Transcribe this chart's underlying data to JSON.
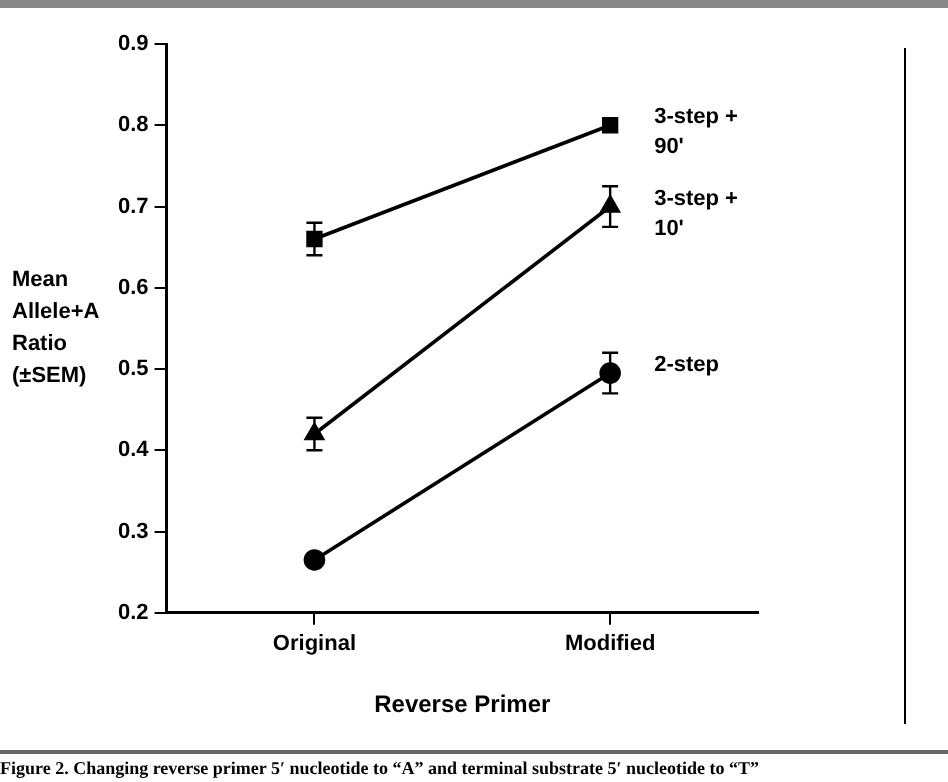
{
  "chart_data": {
    "type": "line",
    "xlabel": "Reverse Primer",
    "ylabel": "Mean Allele+A Ratio (±SEM)",
    "categories": [
      "Original",
      "Modified"
    ],
    "ylim": [
      0.2,
      0.9
    ],
    "yticks": [
      0.2,
      0.3,
      0.4,
      0.5,
      0.6,
      0.7,
      0.8,
      0.9
    ],
    "grid": false,
    "legend": false,
    "line_style": "solid",
    "series": [
      {
        "name": "3-step + 90'",
        "color": "#000000",
        "marker": "square",
        "values": [
          0.66,
          0.8
        ],
        "errors": [
          0.02,
          null
        ]
      },
      {
        "name": "3-step + 10'",
        "color": "#000000",
        "marker": "triangle",
        "values": [
          0.42,
          0.7
        ],
        "errors": [
          0.02,
          0.025
        ]
      },
      {
        "name": "2-step",
        "color": "#000000",
        "marker": "circle",
        "values": [
          0.265,
          0.495
        ],
        "errors": [
          null,
          0.025
        ]
      }
    ],
    "annotations": [
      "Figure 2. Changing reverse primer 5′ nucleotide to “A” and terminal substrate 5′ nucleotide to “T”"
    ]
  }
}
